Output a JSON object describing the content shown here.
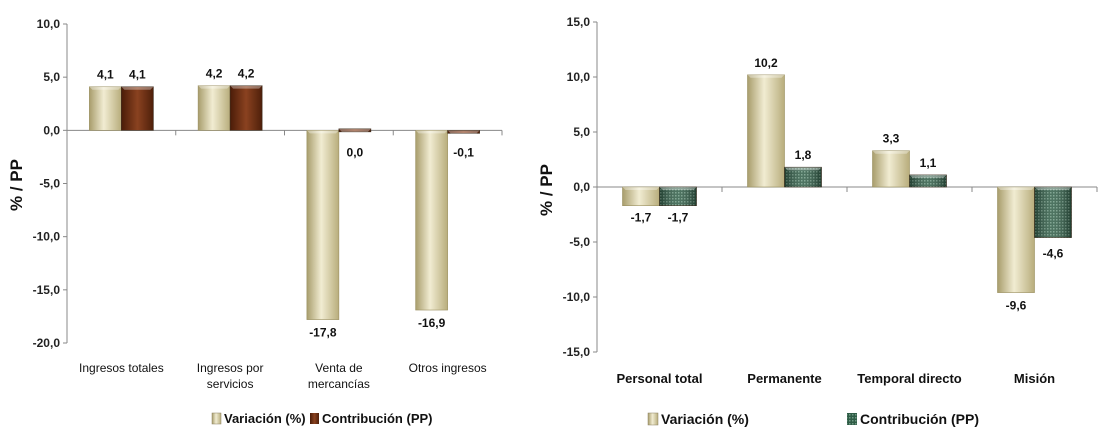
{
  "chart_data": [
    {
      "type": "bar",
      "title": "",
      "xlabel": "",
      "ylabel": "% / PP",
      "ylim": [
        -20,
        10
      ],
      "yticks": [
        "10,0",
        "5,0",
        "0,0",
        "-5,0",
        "-10,0",
        "-15,0",
        "-20,0"
      ],
      "grid": false,
      "legend": "bottom",
      "categories": [
        [
          "Ingresos totales"
        ],
        [
          "Ingresos por",
          "servicios"
        ],
        [
          "Venta de",
          "mercancías"
        ],
        [
          "Otros ingresos"
        ]
      ],
      "series": [
        {
          "name": "Variación (%)",
          "values": [
            4.1,
            4.2,
            -17.8,
            -16.9
          ],
          "labels": [
            "4,1",
            "4,2",
            "-17,8",
            "-16,9"
          ],
          "color": "#cdc59c"
        },
        {
          "name": "Contribución (PP)",
          "values": [
            4.1,
            4.2,
            0.0,
            -0.1
          ],
          "labels": [
            "4,1",
            "4,2",
            "0,0",
            "-0,1"
          ],
          "color": "#6b2e12"
        }
      ]
    },
    {
      "type": "bar",
      "title": "",
      "xlabel": "",
      "ylabel": "% / PP",
      "ylim": [
        -15,
        15
      ],
      "yticks": [
        "15,0",
        "10,0",
        "5,0",
        "0,0",
        "-5,0",
        "-10,0",
        "-15,0"
      ],
      "grid": false,
      "legend": "bottom",
      "categories": [
        [
          "Personal total"
        ],
        [
          "Permanente"
        ],
        [
          "Temporal directo"
        ],
        [
          "Misión"
        ]
      ],
      "series": [
        {
          "name": "Variación (%)",
          "values": [
            -1.7,
            10.2,
            3.3,
            -9.6
          ],
          "labels": [
            "-1,7",
            "10,2",
            "3,3",
            "-9,6"
          ],
          "color": "#cdc59c"
        },
        {
          "name": "Contribución (PP)",
          "values": [
            -1.7,
            1.8,
            1.1,
            -4.6
          ],
          "labels": [
            "-1,7",
            "1,8",
            "1,1",
            "-4,6"
          ],
          "color": "#2d5a44"
        }
      ]
    }
  ]
}
